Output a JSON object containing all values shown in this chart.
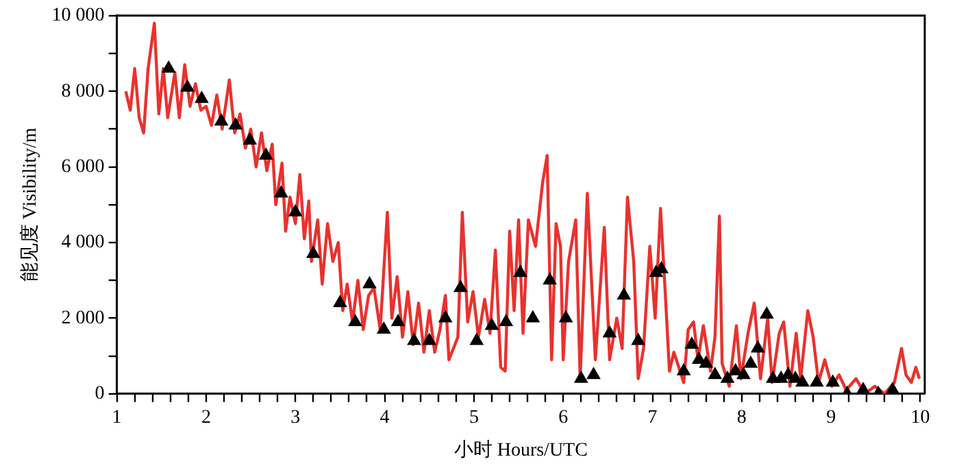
{
  "chart_data": {
    "type": "line",
    "xlabel": "小时 Hours/UTC",
    "ylabel": "能见度 Visibility/m",
    "xlim": [
      1,
      10.05
    ],
    "ylim": [
      0,
      10000
    ],
    "xticks": [
      1,
      {
        "value": 1.2,
        "label": null
      },
      {
        "value": 1.4,
        "label": null
      },
      {
        "value": 1.6,
        "label": null
      },
      {
        "value": 1.8,
        "label": null
      },
      2,
      {
        "value": 2.2,
        "label": null
      },
      {
        "value": 2.4,
        "label": null
      },
      {
        "value": 2.6,
        "label": null
      },
      {
        "value": 2.8,
        "label": null
      },
      3,
      {
        "value": 3.2,
        "label": null
      },
      {
        "value": 3.4,
        "label": null
      },
      {
        "value": 3.6,
        "label": null
      },
      {
        "value": 3.8,
        "label": null
      },
      4,
      {
        "value": 4.2,
        "label": null
      },
      {
        "value": 4.4,
        "label": null
      },
      {
        "value": 4.6,
        "label": null
      },
      {
        "value": 4.8,
        "label": null
      },
      5,
      {
        "value": 5.2,
        "label": null
      },
      {
        "value": 5.4,
        "label": null
      },
      {
        "value": 5.6,
        "label": null
      },
      {
        "value": 5.8,
        "label": null
      },
      6,
      {
        "value": 6.2,
        "label": null
      },
      {
        "value": 6.4,
        "label": null
      },
      {
        "value": 6.6,
        "label": null
      },
      {
        "value": 6.8,
        "label": null
      },
      7,
      {
        "value": 7.2,
        "label": null
      },
      {
        "value": 7.4,
        "label": null
      },
      {
        "value": 7.6,
        "label": null
      },
      {
        "value": 7.8,
        "label": null
      },
      8,
      {
        "value": 8.2,
        "label": null
      },
      {
        "value": 8.4,
        "label": null
      },
      {
        "value": 8.6,
        "label": null
      },
      {
        "value": 8.8,
        "label": null
      },
      9,
      {
        "value": 9.2,
        "label": null
      },
      {
        "value": 9.4,
        "label": null
      },
      {
        "value": 9.6,
        "label": null
      },
      {
        "value": 9.8,
        "label": null
      },
      10
    ],
    "yticks": [
      0,
      {
        "value": 1000,
        "label": null
      },
      {
        "value": 2000,
        "label": "2 000"
      },
      {
        "value": 3000,
        "label": null
      },
      {
        "value": 4000,
        "label": "4 000"
      },
      {
        "value": 5000,
        "label": null
      },
      {
        "value": 6000,
        "label": "6 000"
      },
      {
        "value": 7000,
        "label": null
      },
      {
        "value": 8000,
        "label": "8 000"
      },
      {
        "value": 9000,
        "label": null
      },
      {
        "value": 10000,
        "label": "10 000"
      }
    ],
    "grid": false,
    "legend": false,
    "series": [
      {
        "type": "line",
        "color": "#e8322e",
        "marker": "none",
        "line_style": "solid",
        "x": [
          1.1,
          1.15,
          1.2,
          1.25,
          1.3,
          1.35,
          1.42,
          1.47,
          1.52,
          1.57,
          1.65,
          1.7,
          1.76,
          1.82,
          1.88,
          1.94,
          2.0,
          2.06,
          2.12,
          2.18,
          2.26,
          2.32,
          2.38,
          2.44,
          2.5,
          2.56,
          2.62,
          2.68,
          2.74,
          2.78,
          2.85,
          2.89,
          2.94,
          3.0,
          3.05,
          3.1,
          3.15,
          3.18,
          3.25,
          3.3,
          3.36,
          3.42,
          3.48,
          3.53,
          3.58,
          3.64,
          3.7,
          3.76,
          3.82,
          3.88,
          3.95,
          4.03,
          4.08,
          4.14,
          4.2,
          4.26,
          4.32,
          4.38,
          4.44,
          4.5,
          4.56,
          4.62,
          4.68,
          4.72,
          4.82,
          4.87,
          4.93,
          4.99,
          5.05,
          5.12,
          5.18,
          5.24,
          5.3,
          5.35,
          5.4,
          5.45,
          5.5,
          5.55,
          5.61,
          5.69,
          5.77,
          5.82,
          5.87,
          5.92,
          5.97,
          6.0,
          6.06,
          6.14,
          6.19,
          6.27,
          6.36,
          6.46,
          6.52,
          6.6,
          6.66,
          6.72,
          6.79,
          6.84,
          6.9,
          6.97,
          7.03,
          7.09,
          7.14,
          7.19,
          7.24,
          7.35,
          7.4,
          7.46,
          7.51,
          7.57,
          7.65,
          7.7,
          7.75,
          7.78,
          7.86,
          7.94,
          7.99,
          8.07,
          8.14,
          8.21,
          8.29,
          8.34,
          8.42,
          8.47,
          8.54,
          8.61,
          8.66,
          8.74,
          8.8,
          8.86,
          8.93,
          9.01,
          9.09,
          9.17,
          9.28,
          9.38,
          9.49,
          9.6,
          9.71,
          9.79,
          9.84,
          9.9,
          9.95,
          9.99
        ],
        "values": [
          8000,
          7500,
          8600,
          7300,
          6900,
          8600,
          9800,
          7400,
          8600,
          7300,
          8500,
          7300,
          8700,
          7600,
          8200,
          7500,
          7600,
          7100,
          7900,
          7000,
          8300,
          6900,
          7400,
          6500,
          7000,
          6000,
          6900,
          5900,
          6600,
          5000,
          6100,
          4300,
          5200,
          4500,
          5800,
          4100,
          5100,
          3500,
          4600,
          2900,
          4500,
          3500,
          4000,
          2200,
          2900,
          1900,
          3000,
          1700,
          2600,
          2800,
          1700,
          4800,
          2000,
          3100,
          1500,
          2700,
          1300,
          2400,
          1100,
          2200,
          1100,
          1700,
          2600,
          900,
          1500,
          4800,
          1900,
          2700,
          1500,
          2500,
          1600,
          3800,
          700,
          600,
          4300,
          2200,
          4600,
          1600,
          4600,
          3900,
          5600,
          6300,
          900,
          4500,
          3900,
          900,
          3500,
          4600,
          400,
          5300,
          900,
          4400,
          900,
          2000,
          1200,
          5200,
          3500,
          400,
          1200,
          3900,
          2000,
          4900,
          2800,
          600,
          1100,
          300,
          1700,
          1900,
          900,
          1800,
          600,
          1500,
          4700,
          800,
          200,
          1800,
          400,
          1600,
          2400,
          400,
          2000,
          300,
          1600,
          1900,
          200,
          1600,
          400,
          2200,
          1500,
          300,
          900,
          200,
          500,
          100,
          400,
          0,
          200,
          0,
          300,
          1200,
          500,
          300,
          700,
          400
        ]
      },
      {
        "type": "scatter",
        "color": "#000000",
        "marker": "triangle",
        "x": [
          1.58,
          1.79,
          1.95,
          2.17,
          2.33,
          2.49,
          2.67,
          2.84,
          3.0,
          3.2,
          3.5,
          3.67,
          3.83,
          3.99,
          4.15,
          4.33,
          4.5,
          4.68,
          4.85,
          5.03,
          5.2,
          5.36,
          5.52,
          5.66,
          5.85,
          6.03,
          6.2,
          6.34,
          6.52,
          6.68,
          6.84,
          7.04,
          7.1,
          7.35,
          7.44,
          7.52,
          7.6,
          7.7,
          7.84,
          7.93,
          8.02,
          8.1,
          8.18,
          8.28,
          8.35,
          8.44,
          8.52,
          8.6,
          8.68,
          8.84,
          9.02,
          9.18,
          9.36,
          9.53,
          9.69
        ],
        "values": [
          8600,
          8100,
          7800,
          7200,
          7100,
          6700,
          6300,
          5300,
          4800,
          3700,
          2400,
          1900,
          2900,
          1700,
          1900,
          1400,
          1400,
          2000,
          2800,
          1400,
          1800,
          1900,
          3200,
          2000,
          3000,
          2000,
          400,
          500,
          1600,
          2600,
          1400,
          3200,
          3300,
          600,
          1300,
          900,
          800,
          500,
          400,
          600,
          500,
          800,
          1200,
          2100,
          400,
          400,
          500,
          400,
          300,
          300,
          300,
          0,
          100,
          0,
          100
        ]
      }
    ]
  }
}
